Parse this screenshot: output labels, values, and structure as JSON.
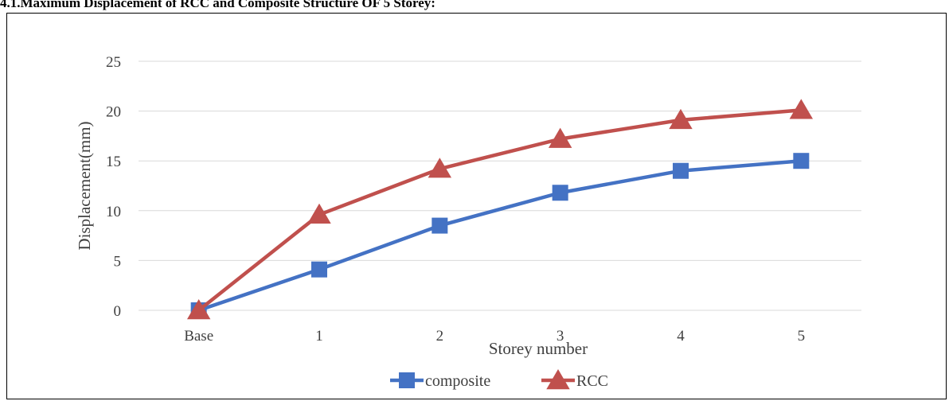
{
  "title": "4.1.Maximum Displacement of RCC and Composite Structure OF 5 Storey:",
  "chart_data": {
    "type": "line",
    "categories": [
      "Base",
      "1",
      "2",
      "3",
      "4",
      "5"
    ],
    "series": [
      {
        "name": "composite",
        "values": [
          0,
          4.1,
          8.5,
          11.8,
          14.0,
          15.0
        ],
        "color": "#4472c4",
        "marker": "square"
      },
      {
        "name": "RCC",
        "values": [
          0,
          9.6,
          14.2,
          17.2,
          19.1,
          20.1
        ],
        "color": "#c0504d",
        "marker": "triangle"
      }
    ],
    "xlabel": "Storey number",
    "ylabel": "Displacement(mm)",
    "ylim": [
      0,
      25
    ],
    "yticks": [
      "0",
      "5",
      "10",
      "15",
      "20",
      "25"
    ],
    "grid": true,
    "legend": "bottom"
  }
}
